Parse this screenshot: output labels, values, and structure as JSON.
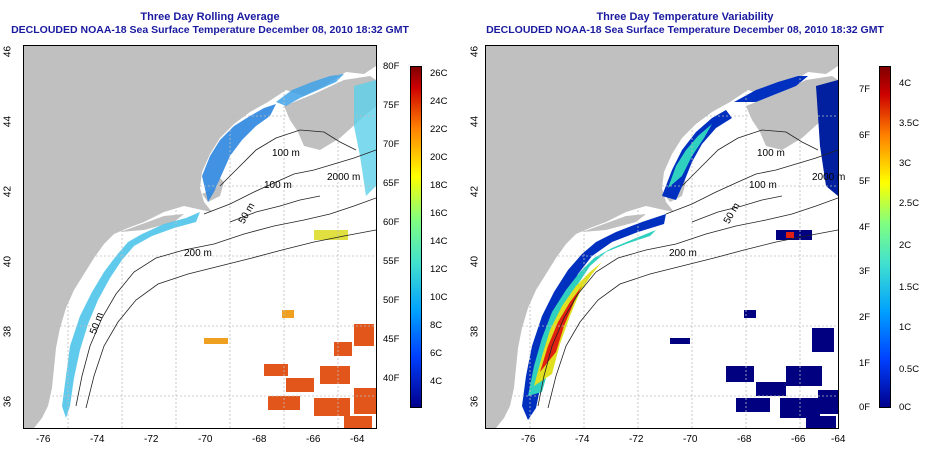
{
  "left": {
    "title": "Three Day Rolling Average",
    "subtitle": "DECLOUDED NOAA-18 Sea Surface Temperature December 08, 2010 18:32 GMT",
    "colorbar_f": [
      "80F",
      "75F",
      "70F",
      "65F",
      "60F",
      "55F",
      "50F",
      "45F",
      "40F"
    ],
    "colorbar_c": [
      "26C",
      "24C",
      "22C",
      "20C",
      "18C",
      "16C",
      "14C",
      "12C",
      "10C",
      "8C",
      "6C",
      "4C"
    ]
  },
  "right": {
    "title": "Three Day Temperature Variability",
    "subtitle": "DECLOUDED NOAA-18 Sea Surface Temperature December 08, 2010 18:32 GMT",
    "colorbar_f": [
      "7F",
      "6F",
      "5F",
      "4F",
      "3F",
      "2F",
      "1F",
      "0F"
    ],
    "colorbar_c": [
      "4C",
      "3.5C",
      "3C",
      "2.5C",
      "2C",
      "1.5C",
      "1C",
      "0.5C",
      "0C"
    ]
  },
  "axes": {
    "lon_ticks": [
      "-76",
      "-74",
      "-72",
      "-70",
      "-68",
      "-66",
      "-64"
    ],
    "lat_ticks": [
      "46",
      "44",
      "42",
      "40",
      "38",
      "36"
    ]
  },
  "contour_labels": [
    "100 m",
    "2000 m",
    "100 m",
    "50 m",
    "200 m",
    "50 m"
  ],
  "colors": {
    "land": "#c0c0c0",
    "title": "#1a1aa0",
    "contour": "#222222",
    "grid": "#bdbdbd"
  }
}
